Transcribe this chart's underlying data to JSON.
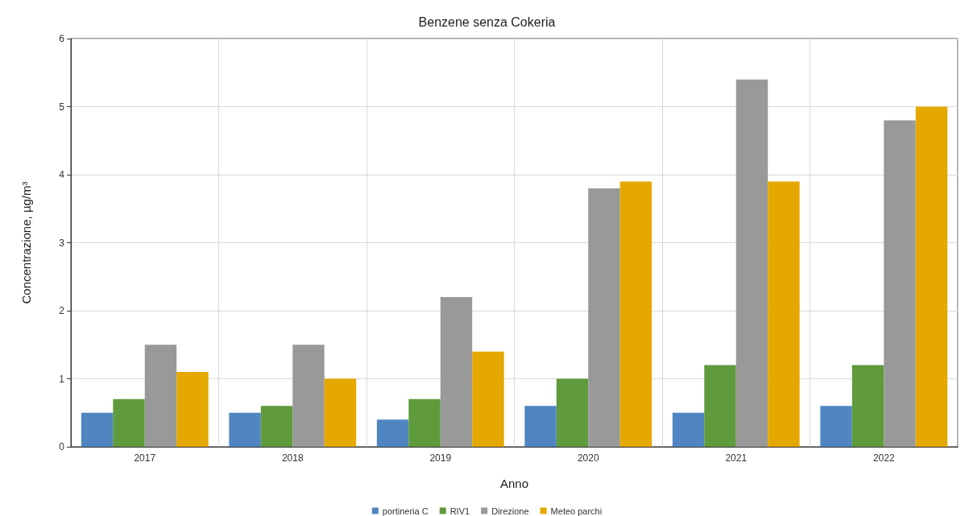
{
  "chart_data": {
    "type": "bar",
    "title": "Benzene senza Cokeria",
    "xlabel": "Anno",
    "ylabel": "Concentrazione, µg/m³",
    "categories": [
      "2017",
      "2018",
      "2019",
      "2020",
      "2021",
      "2022"
    ],
    "series": [
      {
        "name": "portineria C",
        "color": "#4f86c2",
        "values": [
          0.5,
          0.5,
          0.4,
          0.6,
          0.5,
          0.6
        ]
      },
      {
        "name": "RIV1",
        "color": "#5f9a3c",
        "values": [
          0.7,
          0.6,
          0.7,
          1.0,
          1.2,
          1.2
        ]
      },
      {
        "name": "Direzione",
        "color": "#999999",
        "values": [
          1.5,
          1.5,
          2.2,
          3.8,
          5.4,
          4.8
        ]
      },
      {
        "name": "Meteo parchi",
        "color": "#e5a800",
        "values": [
          1.1,
          1.0,
          1.4,
          3.9,
          3.9,
          5.0
        ]
      }
    ],
    "ylim": [
      0,
      6
    ],
    "yticks": [
      0,
      1,
      2,
      3,
      4,
      5,
      6
    ],
    "grid": true,
    "legend": "bottom"
  }
}
